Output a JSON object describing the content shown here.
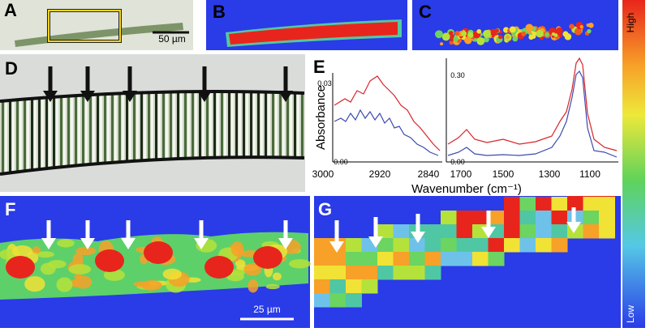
{
  "panels": {
    "a": {
      "label": "A",
      "scale_bar": "50 µm"
    },
    "b": {
      "label": "B"
    },
    "c": {
      "label": "C"
    },
    "d": {
      "label": "D"
    },
    "e": {
      "label": "E",
      "y_label": "Absorbance",
      "x_label": "Wavenumber (cm⁻¹)",
      "left_xticks": [
        "3000",
        "2920",
        "2840"
      ],
      "right_xticks": [
        "1700",
        "1500",
        "1300",
        "1100"
      ],
      "left_yticks": [
        "0.03",
        "0.00"
      ],
      "right_yticks": [
        "0.30",
        "0.00"
      ]
    },
    "f": {
      "label": "F",
      "scale_bar": "25 µm"
    },
    "g": {
      "label": "G"
    }
  },
  "colorbar": {
    "high": "High",
    "low": "Low"
  }
}
